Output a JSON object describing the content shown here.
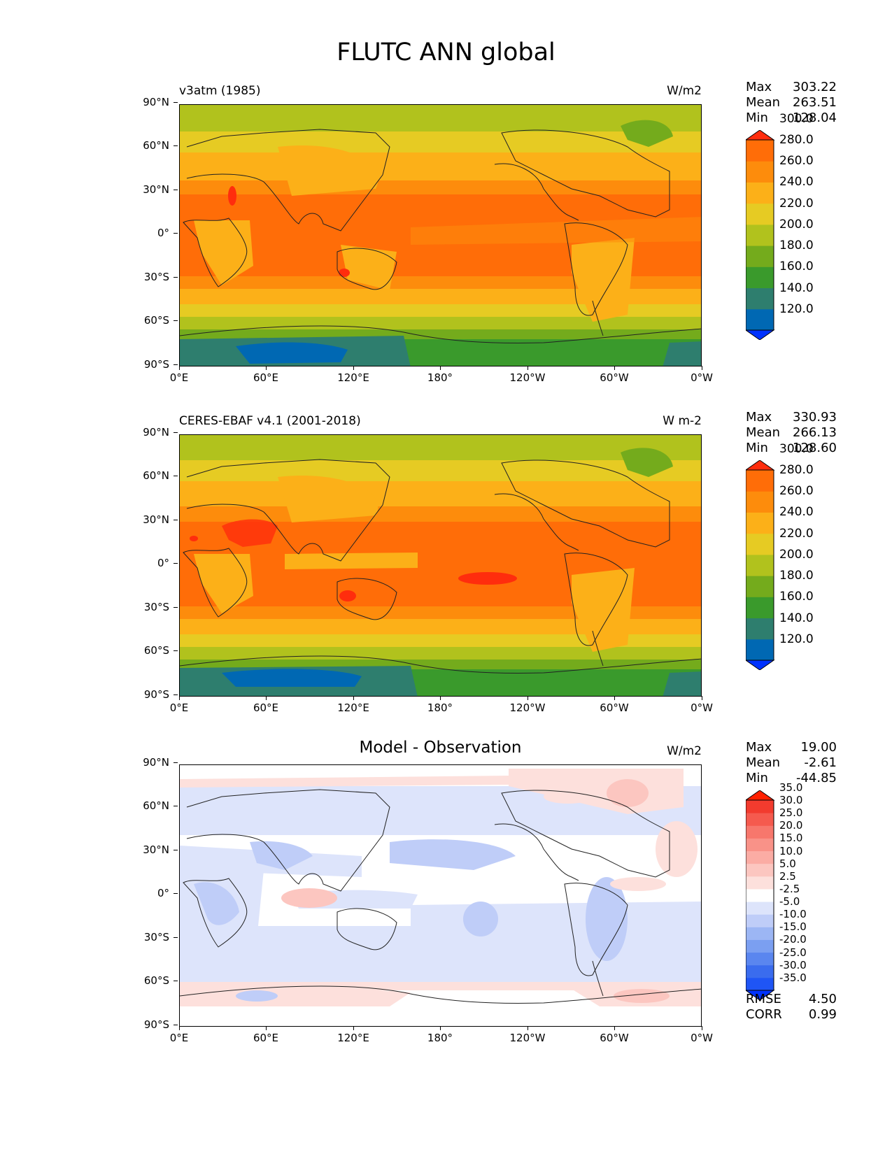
{
  "figure": {
    "title": "FLUTC ANN global"
  },
  "axes": {
    "lat_ticks": [
      "90°N",
      "60°N",
      "30°N",
      "0°",
      "30°S",
      "60°S",
      "90°S"
    ],
    "lon_ticks": [
      "0°E",
      "60°E",
      "120°E",
      "180°",
      "120°W",
      "60°W",
      "0°W"
    ]
  },
  "panels": [
    {
      "id": "model",
      "left_title": "v3atm (1985)",
      "center_title": "",
      "units": "W/m2",
      "stats": [
        {
          "label": "Max",
          "value": "303.22"
        },
        {
          "label": "Mean",
          "value": "263.51"
        },
        {
          "label": "Min",
          "value": "128.04"
        }
      ],
      "colorbar": {
        "levels": [
          "120.0",
          "140.0",
          "160.0",
          "180.0",
          "200.0",
          "220.0",
          "240.0",
          "260.0",
          "280.0",
          "300.0"
        ],
        "colors": [
          "#0032ff",
          "#0068b3",
          "#2e7e6e",
          "#3a9a2c",
          "#74ab1c",
          "#b1c21d",
          "#e6cb23",
          "#fcb018",
          "#fd8c0c",
          "#ff6d08",
          "#ff2d0d"
        ]
      }
    },
    {
      "id": "obs",
      "left_title": "CERES-EBAF v4.1 (2001-2018)",
      "center_title": "",
      "units": "W m-2",
      "stats": [
        {
          "label": "Max",
          "value": "330.93"
        },
        {
          "label": "Mean",
          "value": "266.13"
        },
        {
          "label": "Min",
          "value": "128.60"
        }
      ],
      "colorbar": {
        "levels": [
          "120.0",
          "140.0",
          "160.0",
          "180.0",
          "200.0",
          "220.0",
          "240.0",
          "260.0",
          "280.0",
          "300.0"
        ],
        "colors": [
          "#0032ff",
          "#0068b3",
          "#2e7e6e",
          "#3a9a2c",
          "#74ab1c",
          "#b1c21d",
          "#e6cb23",
          "#fcb018",
          "#fd8c0c",
          "#ff6d08",
          "#ff2d0d"
        ]
      }
    },
    {
      "id": "diff",
      "left_title": "",
      "center_title": "Model - Observation",
      "units": "W/m2",
      "stats": [
        {
          "label": "Max",
          "value": "19.00"
        },
        {
          "label": "Mean",
          "value": "-2.61"
        },
        {
          "label": "Min",
          "value": "-44.85"
        }
      ],
      "colorbar": {
        "levels": [
          "-35.0",
          "-30.0",
          "-25.0",
          "-20.0",
          "-15.0",
          "-10.0",
          "-5.0",
          "-2.5",
          "2.5",
          "5.0",
          "10.0",
          "15.0",
          "20.0",
          "25.0",
          "30.0",
          "35.0"
        ],
        "colors": [
          "#0032ff",
          "#1f55f5",
          "#3a6cee",
          "#5a86ef",
          "#7b9ff1",
          "#9cb6f4",
          "#bfcdf8",
          "#dde4fb",
          "#ffffff",
          "#fde0dc",
          "#fcc6c0",
          "#fbaca4",
          "#f99288",
          "#f7776c",
          "#f55a4e",
          "#f23b2e",
          "#ff2000"
        ]
      }
    }
  ],
  "diff_metrics": [
    {
      "label": "RMSE",
      "value": "4.50"
    },
    {
      "label": "CORR",
      "value": "0.99"
    }
  ]
}
